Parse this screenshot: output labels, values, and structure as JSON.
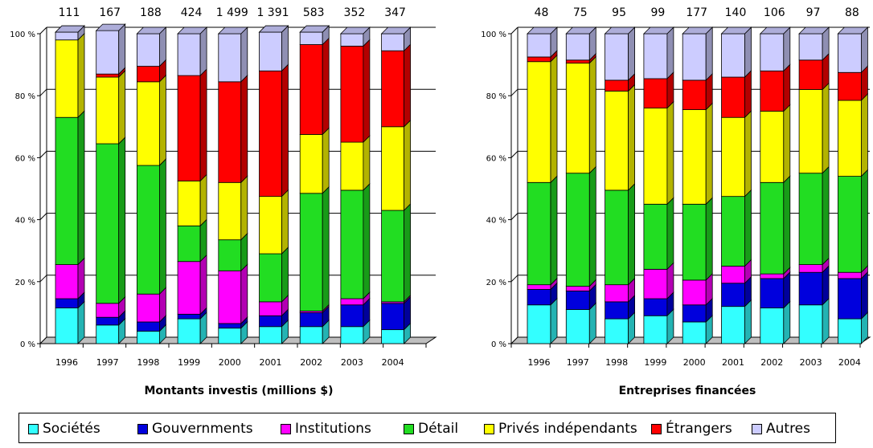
{
  "categories_label": "years",
  "legend": [
    {
      "label": "Sociétés",
      "color": "#33ffff"
    },
    {
      "label": "Gouvernments",
      "color": "#0000dd"
    },
    {
      "label": "Institutions",
      "color": "#ff00ff"
    },
    {
      "label": "Détail",
      "color": "#22dd22"
    },
    {
      "label": "Privés indépendants",
      "color": "#ffff00"
    },
    {
      "label": "Étrangers",
      "color": "#ff0000"
    },
    {
      "label": "Autres",
      "color": "#ccccff"
    }
  ],
  "chart_data": [
    {
      "type": "bar",
      "stacked": true,
      "title": "Montants investis (millions $)",
      "categories": [
        "1996",
        "1997",
        "1998",
        "1999",
        "2000",
        "2001",
        "2002",
        "2003",
        "2004"
      ],
      "top_labels": [
        "111",
        "167",
        "188",
        "424",
        "1 499",
        "1 391",
        "583",
        "352",
        "347"
      ],
      "y_ticks": [
        "0 %",
        "20 %",
        "40 %",
        "60 %",
        "80 %",
        "100 %"
      ],
      "ylim": [
        0,
        100
      ],
      "series": [
        {
          "name": "Sociétés",
          "values": [
            11.5,
            6,
            4,
            8,
            5,
            5.5,
            5.5,
            5.5,
            4.5
          ]
        },
        {
          "name": "Gouvernments",
          "values": [
            3,
            2.5,
            3,
            1.5,
            1.5,
            3.5,
            4.5,
            7,
            8.5
          ]
        },
        {
          "name": "Institutions",
          "values": [
            11,
            4.5,
            9,
            17,
            17,
            4.5,
            0.5,
            2,
            0.5
          ]
        },
        {
          "name": "Détail",
          "values": [
            47.5,
            51.5,
            41.5,
            11.5,
            10,
            15.5,
            38,
            35,
            29.5
          ]
        },
        {
          "name": "Privés indépendants",
          "values": [
            25,
            21.5,
            27,
            14.5,
            18.5,
            18.5,
            19,
            15.5,
            27
          ]
        },
        {
          "name": "Étrangers",
          "values": [
            0,
            1,
            5,
            34,
            32.5,
            40.5,
            29,
            31,
            24.5
          ]
        },
        {
          "name": "Autres",
          "values": [
            2.5,
            14,
            10.5,
            13.5,
            15.5,
            12.5,
            4,
            4,
            5.5
          ]
        }
      ]
    },
    {
      "type": "bar",
      "stacked": true,
      "title": "Entreprises financées",
      "categories": [
        "1996",
        "1997",
        "1998",
        "1999",
        "2000",
        "2001",
        "2002",
        "2003",
        "2004"
      ],
      "top_labels": [
        "48",
        "75",
        "95",
        "99",
        "177",
        "140",
        "106",
        "97",
        "88"
      ],
      "y_ticks": [
        "0 %",
        "20 %",
        "40 %",
        "60 %",
        "80 %",
        "100 %"
      ],
      "ylim": [
        0,
        100
      ],
      "series": [
        {
          "name": "Sociétés",
          "values": [
            12.5,
            11,
            8,
            9,
            7,
            12,
            11.5,
            12.5,
            8
          ]
        },
        {
          "name": "Gouvernments",
          "values": [
            5,
            6,
            5.5,
            5.5,
            5.5,
            7.5,
            9.5,
            10.5,
            13
          ]
        },
        {
          "name": "Institutions",
          "values": [
            1.5,
            1.5,
            5.5,
            9.5,
            8,
            5.5,
            1.5,
            2.5,
            2
          ]
        },
        {
          "name": "Détail",
          "values": [
            33,
            36.5,
            30.5,
            21,
            24.5,
            22.5,
            29.5,
            29.5,
            31
          ]
        },
        {
          "name": "Privés indépendants",
          "values": [
            39,
            35.5,
            32,
            31,
            30.5,
            25.5,
            23,
            27,
            24.5
          ]
        },
        {
          "name": "Étrangers",
          "values": [
            1.5,
            1,
            3.5,
            9.5,
            9.5,
            13,
            13,
            9.5,
            9
          ]
        },
        {
          "name": "Autres",
          "values": [
            7.5,
            8.5,
            15,
            14.5,
            15,
            14,
            12,
            8.5,
            12.5
          ]
        }
      ]
    }
  ]
}
